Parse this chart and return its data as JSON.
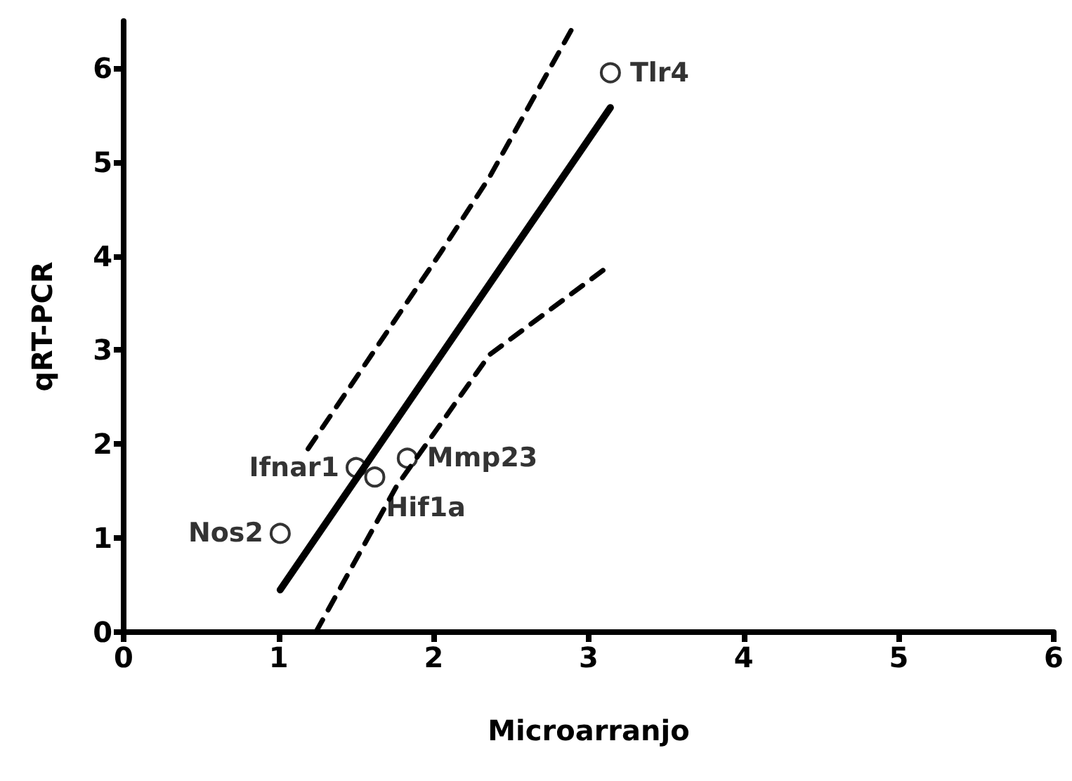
{
  "chart_data": {
    "type": "scatter",
    "xlabel": "Microarranjo",
    "ylabel": "qRT-PCR",
    "xlim": [
      0,
      6
    ],
    "xticks": [
      0,
      1,
      2,
      3,
      4,
      5,
      6
    ],
    "ylim": [
      0,
      6.5
    ],
    "yticks": [
      0,
      1,
      2,
      3,
      4,
      5,
      6
    ],
    "grid": false,
    "series": [
      {
        "color": "#000000",
        "marker": "circle",
        "x": [
          1.01,
          1.5,
          1.62,
          1.83,
          3.14
        ],
        "values": [
          1.05,
          1.75,
          1.65,
          1.85,
          5.95
        ]
      },
      {
        "type": "line",
        "color": "#000000",
        "line_style": "solid",
        "marker": "none",
        "x": [
          1.01,
          3.14
        ],
        "values": [
          0.45,
          5.58
        ]
      },
      {
        "type": "line",
        "color": "#000000",
        "line_style": "dashed",
        "marker": "none",
        "x": [
          1.19,
          2.05,
          2.36,
          2.92
        ],
        "values": [
          1.95,
          4.05,
          4.84,
          6.5
        ]
      },
      {
        "type": "line",
        "color": "#000000",
        "line_style": "dashed",
        "marker": "none",
        "x": [
          1.24,
          1.76,
          2.36,
          3.11
        ],
        "values": [
          0,
          1.55,
          2.95,
          3.87
        ]
      }
    ],
    "annotations": [
      {
        "text": "Nos2",
        "x": 1.01,
        "y": 1.05
      },
      {
        "text": "Ifnar1",
        "x": 1.5,
        "y": 1.75
      },
      {
        "text": "Hif1a",
        "x": 1.62,
        "y": 1.65
      },
      {
        "text": "Mmp23",
        "x": 1.83,
        "y": 1.85
      },
      {
        "text": "Tlr4",
        "x": 3.14,
        "y": 5.95
      }
    ]
  }
}
